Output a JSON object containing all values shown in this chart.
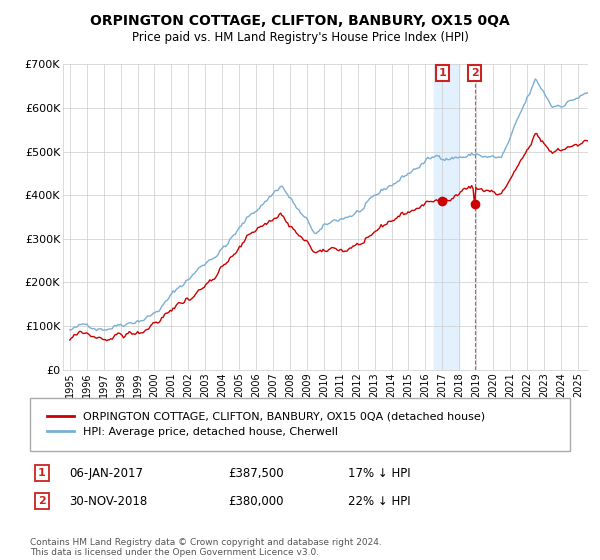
{
  "title": "ORPINGTON COTTAGE, CLIFTON, BANBURY, OX15 0QA",
  "subtitle": "Price paid vs. HM Land Registry's House Price Index (HPI)",
  "legend_line1": "ORPINGTON COTTAGE, CLIFTON, BANBURY, OX15 0QA (detached house)",
  "legend_line2": "HPI: Average price, detached house, Cherwell",
  "annotation1_label": "1",
  "annotation1_date": "06-JAN-2017",
  "annotation1_price": "£387,500",
  "annotation1_hpi": "17% ↓ HPI",
  "annotation2_label": "2",
  "annotation2_date": "30-NOV-2018",
  "annotation2_price": "£380,000",
  "annotation2_hpi": "22% ↓ HPI",
  "footnote": "Contains HM Land Registry data © Crown copyright and database right 2024.\nThis data is licensed under the Open Government Licence v3.0.",
  "hpi_color": "#7bafd4",
  "price_color": "#cc0000",
  "annotation_vline_color": "#cc4444",
  "shade_color": "#ddeeff",
  "ylim": [
    0,
    700000
  ],
  "yticks": [
    0,
    100000,
    200000,
    300000,
    400000,
    500000,
    600000,
    700000
  ],
  "ytick_labels": [
    "£0",
    "£100K",
    "£200K",
    "£300K",
    "£400K",
    "£500K",
    "£600K",
    "£700K"
  ],
  "t1": 2017.0,
  "t2": 2018.917,
  "price1": 387500,
  "price2": 380000
}
